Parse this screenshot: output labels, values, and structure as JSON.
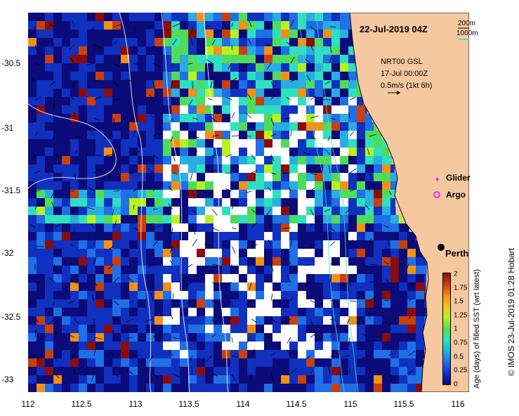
{
  "title": {
    "date": "22-Jul-2019 04Z"
  },
  "legend": {
    "contour_200": "200m",
    "contour_1000": "1000m",
    "contour_200_color": "#000000",
    "contour_1000_color": "#4fd8c8",
    "product": "NRT00 GSL",
    "product_date": "17-Jul 00:00Z",
    "vector_scale": "0.5m/s (1kt 6h)"
  },
  "markers": {
    "glider": "Glider",
    "argo": "Argo",
    "perth": "Perth",
    "glider_color": "#ff00ff",
    "argo_color": "#ff00ff"
  },
  "axes": {
    "x_ticks": [
      "112",
      "112.5",
      "113",
      "113.5",
      "114",
      "114.5",
      "115",
      "115.5",
      "116"
    ],
    "y_ticks": [
      "-30.5",
      "-31",
      "-31.5",
      "-32",
      "-32.5",
      "-33"
    ]
  },
  "colorbar": {
    "title": "Age (days) of filled SST (wrt latest)",
    "ticks": [
      "2",
      "1.75",
      "1.5",
      "1.25",
      "1",
      "0.75",
      "0.5",
      "0.25",
      "0"
    ],
    "colors": [
      "#0b0b7a",
      "#1030c0",
      "#1f6fe6",
      "#28aee0",
      "#2ee0c0",
      "#4fdc5a",
      "#b8f21e",
      "#f2c428",
      "#f39016",
      "#c8400e",
      "#8c0c0c"
    ]
  },
  "credit": "© IMOS 23-Jul-2019 01:28 Hobart"
}
